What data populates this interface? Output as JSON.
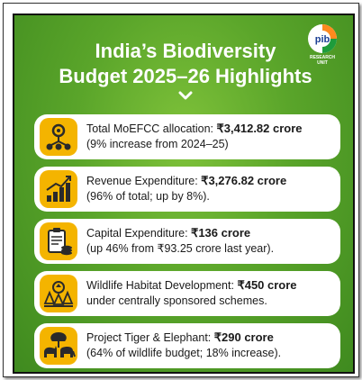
{
  "logo": {
    "label": "RESEARCH UNIT"
  },
  "title": {
    "line1": "India’s Biodiversity",
    "line2": "Budget 2025–26 Highlights"
  },
  "colors": {
    "bg_green": "#5aa52a",
    "icon_yellow": "#f4b400",
    "icon_dark": "#2a2a2a",
    "text": "#1a1a1a"
  },
  "items": [
    {
      "icon": "network-nodes-icon",
      "label": "Total MoEFCC allocation: ",
      "value": "₹3,412.82 crore",
      "sub": "(9% increase from 2024–25)"
    },
    {
      "icon": "growth-bar-chart-icon",
      "label": "Revenue Expenditure: ",
      "value": "₹3,276.82 crore",
      "sub": "(96% of total; up by 8%)."
    },
    {
      "icon": "clipboard-coins-icon",
      "label": "Capital Expenditure: ",
      "value": "₹136 crore",
      "sub": "(up 46% from ₹93.25 crore last year)."
    },
    {
      "icon": "forest-habitat-icon",
      "label": "Wildlife Habitat Development: ",
      "value": "₹450 crore",
      "sub": "under centrally sponsored schemes."
    },
    {
      "icon": "tiger-elephant-icon",
      "label": "Project Tiger & Elephant: ",
      "value": "₹290 crore",
      "sub": "(64% of wildlife budget; 18% increase)."
    }
  ]
}
